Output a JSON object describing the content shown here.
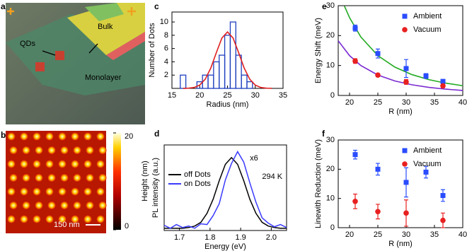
{
  "chart_data": [
    {
      "type": "image",
      "panel": "a",
      "annotations": [
        "Bulk",
        "QDs",
        "Monolayer"
      ]
    },
    {
      "type": "image",
      "panel": "b",
      "annotations": [
        "150 nm"
      ],
      "colorbar": {
        "label": "Height (nm)",
        "lim": [
          0,
          20
        ],
        "ticks": [
          0,
          20
        ]
      }
    },
    {
      "type": "histogram",
      "panel": "c",
      "xlabel": "Radius (nm)",
      "ylabel": "Number of Dots",
      "bins": [
        16.5,
        17.5,
        18.5,
        19.5,
        20.5,
        21.5,
        22.5,
        23.5,
        24.5,
        25.5,
        26.5,
        27.5,
        28.5,
        29.5
      ],
      "counts": [
        2,
        0,
        0,
        1,
        2,
        2,
        4,
        5,
        8,
        10,
        5,
        2,
        1
      ],
      "color": "#2040c0",
      "fit": {
        "color": "#e02020",
        "x": [
          17,
          18,
          19,
          20,
          21,
          22,
          23,
          24,
          25,
          26,
          27,
          28,
          29,
          30,
          31,
          32,
          33
        ],
        "values": [
          0.006,
          0.03,
          0.14,
          0.5,
          1.39,
          3.07,
          5.4,
          7.59,
          8.5,
          7.59,
          5.4,
          3.07,
          1.39,
          0.5,
          0.14,
          0.03,
          0.006
        ]
      },
      "xlim": [
        15,
        35
      ],
      "xticks": [
        15,
        20,
        25,
        30,
        35
      ],
      "ylim": [
        0,
        11.5
      ],
      "yticks": [
        2,
        4,
        6,
        8,
        10
      ]
    },
    {
      "type": "line",
      "panel": "d",
      "xlabel": "Energy (eV)",
      "ylabel": "PL intensity (a.u.)",
      "annotations": [
        "x6",
        "294 K"
      ],
      "legend": "upper left",
      "x": [
        1.65,
        1.67,
        1.69,
        1.71,
        1.73,
        1.75,
        1.77,
        1.79,
        1.81,
        1.83,
        1.85,
        1.87,
        1.89,
        1.91,
        1.93,
        1.95,
        1.97,
        1.99,
        2.01,
        2.03,
        2.05
      ],
      "series": [
        {
          "name": "off Dots",
          "color": "#000000",
          "values": [
            0.03,
            0.03,
            0.03,
            0.03,
            0.04,
            0.06,
            0.11,
            0.23,
            0.42,
            0.67,
            0.89,
            0.98,
            0.89,
            0.67,
            0.42,
            0.23,
            0.11,
            0.06,
            0.04,
            0.03,
            0.03
          ]
        },
        {
          "name": "on Dots",
          "color": "#3a3aff",
          "values": [
            0.07,
            0.03,
            0.08,
            0.04,
            0.06,
            0.03,
            0.09,
            0.08,
            0.2,
            0.36,
            0.68,
            0.9,
            1.06,
            0.92,
            0.64,
            0.38,
            0.17,
            0.1,
            0.05,
            0.08,
            0.04
          ]
        }
      ],
      "xlim": [
        1.65,
        2.05
      ],
      "xticks": [
        1.7,
        1.8,
        1.9,
        {
          "value": 2,
          "label": "2.0"
        }
      ],
      "ylim": [
        0,
        1.15
      ]
    },
    {
      "type": "errorbar",
      "panel": "e",
      "xlabel": "R (nm)",
      "ylabel": "Energy Shift (meV)",
      "legend": "upper right",
      "series": [
        {
          "name": "Ambient",
          "color": "#2a4cff",
          "marker": "square",
          "x": [
            21,
            25,
            30,
            33.5,
            36.5
          ],
          "values": [
            22.5,
            14,
            9,
            6.5,
            4.7
          ],
          "errors": [
            1,
            1.5,
            3,
            0.8,
            0.5
          ]
        },
        {
          "name": "Vacuum",
          "color": "#e82020",
          "marker": "circle",
          "x": [
            21,
            25,
            30,
            36.5
          ],
          "values": [
            11.5,
            6.8,
            4.5,
            3.2
          ],
          "errors": [
            0.8,
            0.5,
            0.8,
            0.6
          ]
        }
      ],
      "fits": [
        {
          "color": "#22aa22",
          "x": [
            19.1,
            20,
            22,
            25,
            28,
            31,
            34,
            37,
            40
          ],
          "values": [
            29.85,
            26,
            19.53,
            13.31,
            9.48,
            6.98,
            5.29,
            4.11,
            3.25
          ]
        },
        {
          "color": "#7a2ad0",
          "x": [
            18,
            20,
            22,
            25,
            28,
            31,
            34,
            37,
            40
          ],
          "values": [
            18.26,
            13.31,
            10,
            6.82,
            4.85,
            3.57,
            2.71,
            2.1,
            1.66
          ]
        }
      ],
      "xlim": [
        18,
        40
      ],
      "xticks": [
        20,
        25,
        30,
        35,
        40
      ],
      "ylim": [
        0,
        30
      ],
      "yticks": [
        0,
        10,
        20,
        30
      ]
    },
    {
      "type": "errorbar",
      "panel": "f",
      "xlabel": "R (nm)",
      "ylabel": "Linewith Reduction (meV)",
      "legend": "upper right",
      "series": [
        {
          "name": "Ambient",
          "color": "#2a4cff",
          "marker": "square",
          "x": [
            21,
            25,
            30,
            33.5,
            36.5
          ],
          "values": [
            25,
            20,
            15.5,
            19,
            11
          ],
          "errors": [
            1.5,
            2,
            5,
            2,
            2
          ]
        },
        {
          "name": "Vacuum",
          "color": "#e82020",
          "marker": "circle",
          "x": [
            21,
            25,
            30,
            36.5
          ],
          "values": [
            9,
            5.5,
            5,
            2.5
          ],
          "errors": [
            2.5,
            2.5,
            4.5,
            2.5
          ]
        }
      ],
      "xlim": [
        18,
        40
      ],
      "xticks": [
        20,
        25,
        30,
        35,
        40
      ],
      "ylim": [
        0,
        30
      ],
      "yticks": [
        0,
        10,
        20,
        30
      ]
    }
  ]
}
